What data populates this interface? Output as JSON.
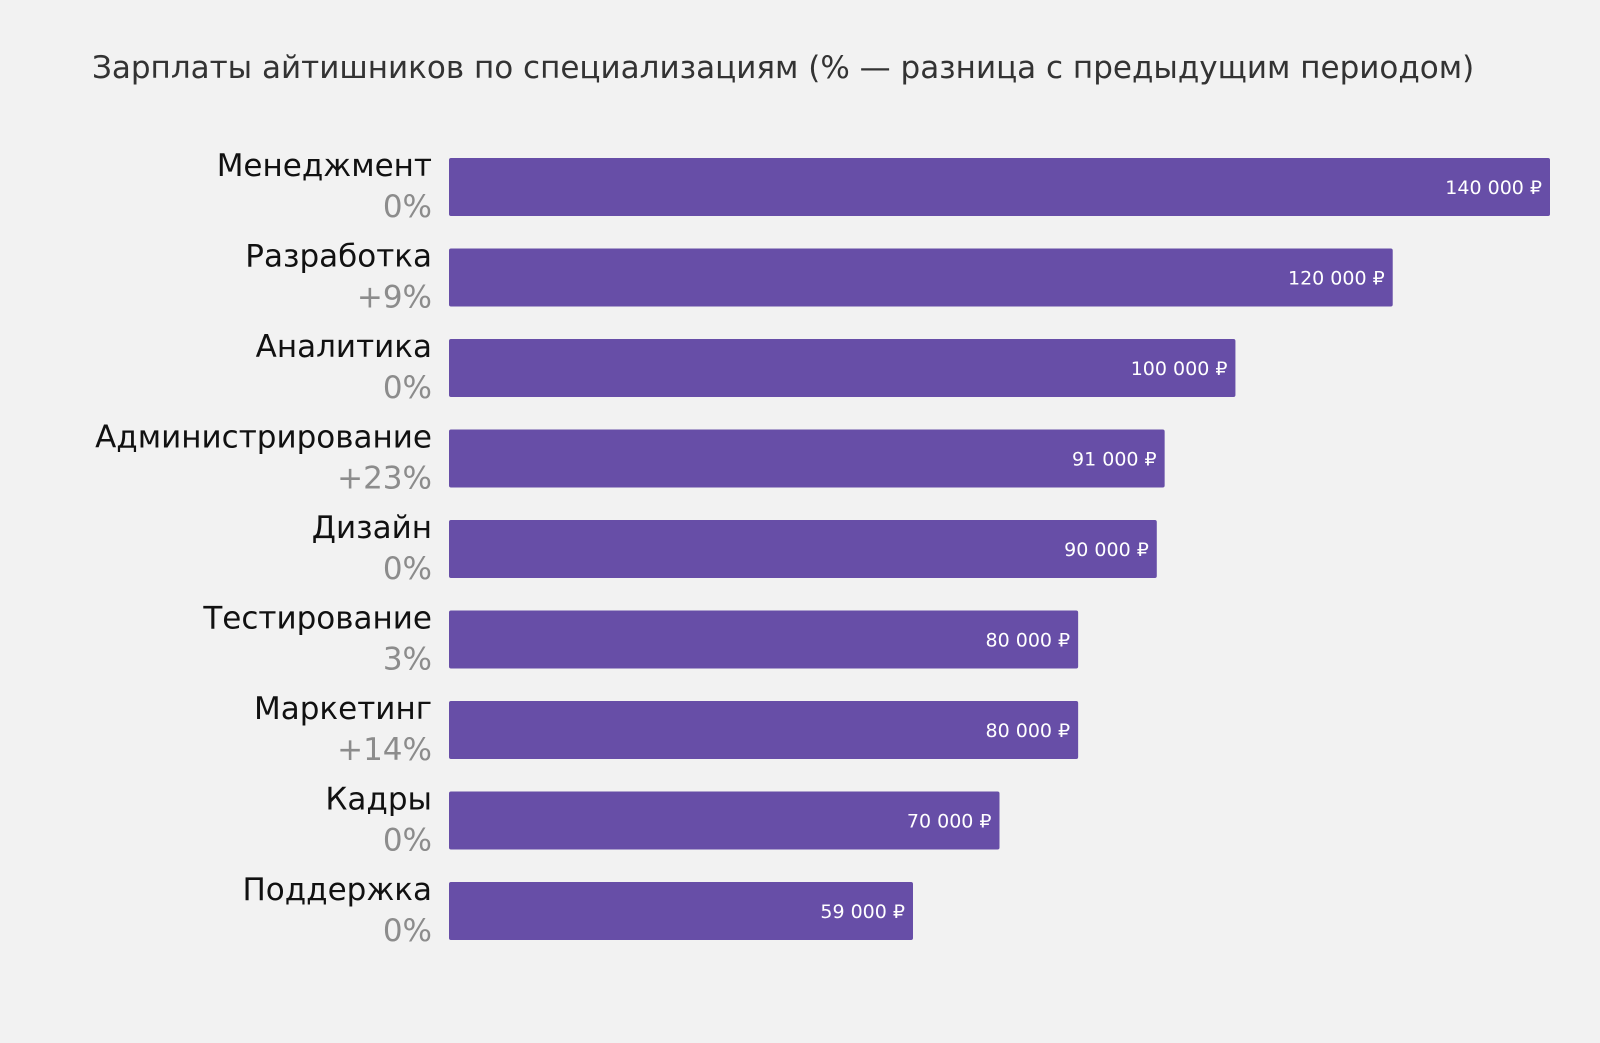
{
  "chart_data": {
    "type": "bar",
    "orientation": "horizontal",
    "title": "Зарплаты айтишников по специализациям (% — разница с предыдущим периодом)",
    "categories": [
      "Менеджмент",
      "Разработка",
      "Аналитика",
      "Администрирование",
      "Дизайн",
      "Тестирование",
      "Маркетинг",
      "Кадры",
      "Поддержка"
    ],
    "values": [
      140000,
      120000,
      100000,
      91000,
      90000,
      80000,
      80000,
      70000,
      59000
    ],
    "value_labels": [
      "140 000 ₽",
      "120 000 ₽",
      "100 000 ₽",
      "91 000 ₽",
      "90 000 ₽",
      "80 000 ₽",
      "80 000 ₽",
      "70 000 ₽",
      "59 000 ₽"
    ],
    "change_labels": [
      "0%",
      "+9%",
      "0%",
      "+23%",
      "0%",
      "3%",
      "+14%",
      "0%",
      "0%"
    ],
    "xlim": [
      0,
      140000
    ],
    "grid": false,
    "legend": "none",
    "colors": {
      "bar": "#674ea7",
      "background": "#f2f2f2",
      "category_text": "#111111",
      "change_text": "#8c8c8c",
      "value_text": "#ffffff",
      "title_text": "#333333"
    }
  }
}
